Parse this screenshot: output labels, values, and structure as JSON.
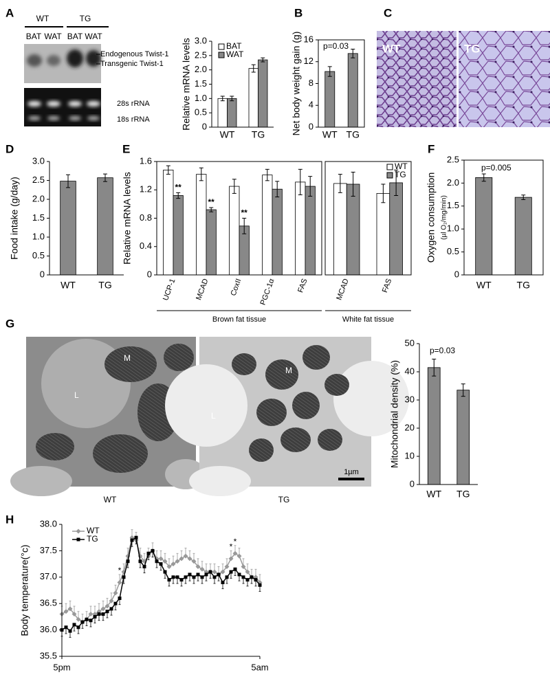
{
  "panels": [
    "A",
    "B",
    "C",
    "D",
    "E",
    "F",
    "G",
    "H"
  ],
  "images": {
    "blot": {
      "genotypes": [
        "WT",
        "TG"
      ],
      "lanes": [
        "BAT",
        "WAT",
        "BAT",
        "WAT"
      ],
      "bands": [
        "Endogenous Twist-1",
        "Transgenic Twist-1"
      ],
      "loading": [
        "28s rRNA",
        "18s rRNA"
      ]
    },
    "histology": {
      "labels": [
        "WT",
        "TG"
      ]
    },
    "em": {
      "labels": [
        "L",
        "M",
        "L",
        "M"
      ],
      "scale": "1µm",
      "captions": [
        "WT",
        "TG"
      ]
    }
  },
  "chart_data": [
    {
      "type": "bar",
      "ylabel": "Relative mRNA levels",
      "categories": [
        "WT",
        "TG"
      ],
      "series": [
        {
          "name": "BAT",
          "color": "#ffffff",
          "values": [
            1.0,
            2.05
          ],
          "errors": [
            0.08,
            0.13
          ]
        },
        {
          "name": "WAT",
          "color": "#888888",
          "values": [
            1.0,
            2.35
          ],
          "errors": [
            0.08,
            0.07
          ]
        }
      ],
      "ylim": [
        0,
        3
      ],
      "yticks": [
        0,
        0.5,
        {
          "value": 1,
          "label": "1.0"
        },
        1.5,
        {
          "value": 2,
          "label": "2.0"
        },
        2.5,
        {
          "value": 3,
          "label": "3.0"
        }
      ],
      "legend": "upper left"
    },
    {
      "type": "bar",
      "ylabel": "Net body weight gain (g)",
      "annotation": "p=0.03",
      "categories": [
        "WT",
        "TG"
      ],
      "series": [
        {
          "color": "#888888",
          "values": [
            10.2,
            13.5
          ],
          "errors": [
            0.9,
            0.8
          ]
        }
      ],
      "ylim": [
        0,
        16
      ],
      "yticks": [
        0,
        4,
        8,
        12,
        16
      ]
    },
    {
      "type": "bar",
      "ylabel": "Food intake (g/day)",
      "categories": [
        "WT",
        "TG"
      ],
      "series": [
        {
          "color": "#888888",
          "values": [
            2.48,
            2.57
          ],
          "errors": [
            0.17,
            0.1
          ]
        }
      ],
      "ylim": [
        0,
        3
      ],
      "yticks": [
        0,
        0.5,
        {
          "value": 1,
          "label": "1.0"
        },
        1.5,
        {
          "value": 2,
          "label": "2.0"
        },
        2.5,
        {
          "value": 3,
          "label": "3.0"
        }
      ]
    },
    {
      "type": "bar",
      "ylabel": "Relative mRNA levels",
      "xlabel": "Brown fat tissue",
      "categories": [
        "UCP-1",
        "MCAD",
        "CoxII",
        "PGC-1α",
        "FAS"
      ],
      "series": [
        {
          "color": "#ffffff",
          "values": [
            1.48,
            1.42,
            1.25,
            1.41,
            1.31
          ],
          "errors": [
            0.06,
            0.09,
            0.1,
            0.08,
            0.18
          ]
        },
        {
          "color": "#888888",
          "values": [
            1.12,
            0.92,
            0.69,
            1.21,
            1.25
          ],
          "errors": [
            0.04,
            0.03,
            0.11,
            0.11,
            0.14
          ],
          "significance": [
            "**",
            "**",
            "**",
            null,
            null
          ]
        }
      ],
      "ylim": [
        0,
        1.6
      ],
      "yticks": [
        0,
        0.4,
        0.8,
        1.2,
        1.6
      ]
    },
    {
      "type": "bar",
      "xlabel": "White fat tissue",
      "categories": [
        "MCAD",
        "FAS"
      ],
      "series": [
        {
          "name": "WT",
          "color": "#ffffff",
          "values": [
            1.29,
            1.15
          ],
          "errors": [
            0.13,
            0.13
          ]
        },
        {
          "name": "TG",
          "color": "#888888",
          "values": [
            1.28,
            1.3
          ],
          "errors": [
            0.17,
            0.18
          ]
        }
      ],
      "ylim": [
        0,
        1.6
      ],
      "legend": "upper right"
    },
    {
      "type": "bar",
      "ylabel": "Oxygen consumption",
      "ylabel_unit": "(µl O₂/mg/min)",
      "annotation": "p=0.005",
      "categories": [
        "WT",
        "TG"
      ],
      "series": [
        {
          "color": "#888888",
          "values": [
            2.12,
            1.69
          ],
          "errors": [
            0.08,
            0.05
          ]
        }
      ],
      "ylim": [
        0,
        2.5
      ],
      "yticks": [
        0,
        0.5,
        {
          "value": 1,
          "label": "1.0"
        },
        1.5,
        {
          "value": 2,
          "label": "2.0"
        },
        2.5
      ]
    },
    {
      "type": "bar",
      "ylabel": "Mitochondrial density (%)",
      "annotation": "p=0.03",
      "categories": [
        "WT",
        "TG"
      ],
      "series": [
        {
          "color": "#888888",
          "values": [
            41.5,
            33.5
          ],
          "errors": [
            3,
            2.2
          ]
        }
      ],
      "ylim": [
        0,
        50
      ],
      "yticks": [
        0,
        10,
        20,
        30,
        40,
        50
      ]
    },
    {
      "type": "line",
      "ylabel": "Body temperature(°c)",
      "x": [
        0,
        0.25,
        0.5,
        0.75,
        1,
        1.25,
        1.5,
        1.75,
        2,
        2.25,
        2.5,
        2.75,
        3,
        3.25,
        3.5,
        3.75,
        4,
        4.25,
        4.5,
        4.75,
        5,
        5.25,
        5.5,
        5.75,
        6,
        6.25,
        6.5,
        6.75,
        7,
        7.25,
        7.5,
        7.75,
        8,
        8.25,
        8.5,
        8.75,
        9,
        9.25,
        9.5,
        9.75,
        10,
        10.25,
        10.5,
        10.75,
        11,
        11.25,
        11.5,
        11.75,
        12
      ],
      "series": [
        {
          "name": "WT",
          "color": "#999999",
          "marker": "diamond",
          "error": 0.15,
          "values": [
            36.3,
            36.35,
            36.4,
            36.3,
            36.2,
            36.15,
            36.2,
            36.3,
            36.3,
            36.35,
            36.4,
            36.45,
            36.55,
            36.7,
            36.9,
            37.1,
            37.4,
            37.75,
            37.7,
            37.4,
            37.3,
            37.4,
            37.5,
            37.35,
            37.35,
            37.3,
            37.2,
            37.25,
            37.3,
            37.35,
            37.4,
            37.35,
            37.3,
            37.2,
            37.15,
            37.1,
            37.1,
            37.1,
            37.05,
            37.1,
            37.2,
            37.35,
            37.45,
            37.4,
            37.2,
            37.1,
            37.0,
            37.0,
            36.9
          ],
          "significance": [
            null,
            null,
            null,
            null,
            null,
            null,
            null,
            null,
            null,
            null,
            null,
            null,
            null,
            null,
            "*",
            null,
            null,
            null,
            null,
            null,
            null,
            null,
            null,
            null,
            null,
            null,
            null,
            null,
            null,
            null,
            null,
            null,
            null,
            null,
            null,
            null,
            null,
            null,
            null,
            null,
            null,
            "*",
            "*",
            null,
            null,
            null,
            null,
            null,
            null
          ]
        },
        {
          "name": "TG",
          "color": "#000000",
          "marker": "square",
          "error": 0.12,
          "values": [
            36.0,
            36.05,
            35.98,
            36.1,
            36.05,
            36.15,
            36.2,
            36.18,
            36.25,
            36.3,
            36.3,
            36.35,
            36.4,
            36.5,
            36.6,
            37.0,
            37.3,
            37.7,
            37.75,
            37.3,
            37.2,
            37.45,
            37.5,
            37.3,
            37.25,
            37.1,
            36.95,
            37.0,
            37.0,
            36.95,
            37.0,
            37.05,
            37.0,
            37.05,
            37.0,
            37.05,
            37.1,
            37.0,
            37.05,
            36.9,
            37.0,
            37.1,
            37.15,
            37.05,
            37.0,
            36.95,
            37.0,
            36.95,
            36.85
          ]
        }
      ],
      "xlim": [
        0,
        12
      ],
      "xticks": [
        {
          "value": 0,
          "label": "5pm"
        },
        {
          "value": 12,
          "label": "5am"
        }
      ],
      "ylim": [
        35.5,
        38
      ],
      "yticks": [
        35.5,
        {
          "value": 36,
          "label": "36.0"
        },
        36.5,
        {
          "value": 37,
          "label": "37.0"
        },
        37.5,
        {
          "value": 38,
          "label": "38.0"
        }
      ],
      "legend": "upper left"
    }
  ]
}
